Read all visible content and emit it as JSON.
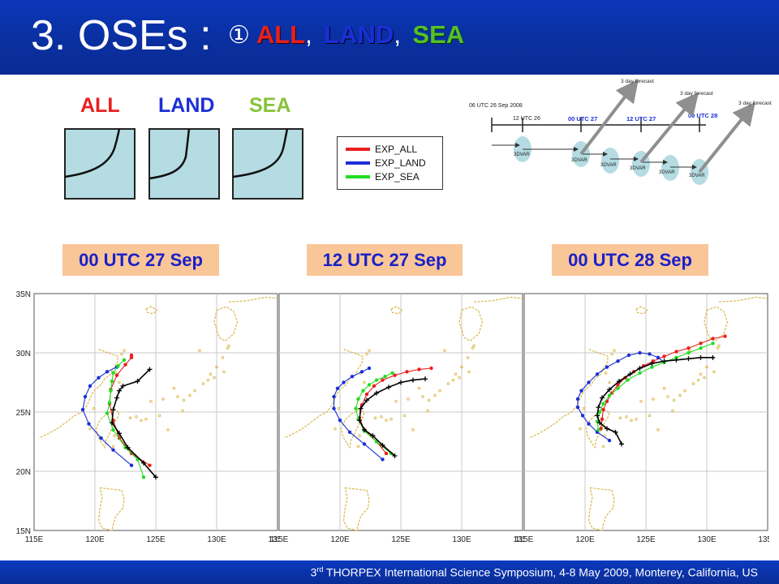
{
  "slide": {
    "title_main": "3. OSEs : ",
    "title_circle": "①",
    "title_all": "ALL",
    "title_comma": ",",
    "title_land": "LAND",
    "title_sea": "SEA",
    "footer_sup": "rd",
    "footer_pre": "3",
    "footer_text": " THORPEX International Science Symposium, 4-8 May 2009, Monterey, California, US"
  },
  "experiments": {
    "labels": [
      {
        "text": "ALL",
        "color": "#e8201f"
      },
      {
        "text": "LAND",
        "color": "#1b2fd6"
      },
      {
        "text": "SEA",
        "color": "#88c33b"
      }
    ],
    "box_color": "#b4dce2"
  },
  "legend": {
    "items": [
      {
        "label": "EXP_ALL",
        "color": "#e8201f"
      },
      {
        "label": "EXP_LAND",
        "color": "#1b2fd6"
      },
      {
        "label": "EXP_SEA",
        "color": "#22dd22"
      }
    ]
  },
  "timeline": {
    "start_label": "06 UTC 26 Sep 2008",
    "ticks": [
      {
        "label": "12 UTC 26",
        "blue": false
      },
      {
        "label": "00 UTC 27",
        "blue": true
      },
      {
        "label": "12 UTC 27",
        "blue": true
      },
      {
        "label": "00 UTC 28",
        "blue": true
      }
    ],
    "cycle_label": "3DVAR",
    "forecast_label": "3 day forecast"
  },
  "panels": {
    "labels": [
      "00 UTC 27 Sep",
      "12 UTC 27 Sep",
      "00 UTC 28 Sep"
    ]
  },
  "map_axes": {
    "lat_ticks": [
      "35N",
      "30N",
      "25N",
      "20N",
      "15N"
    ],
    "lon_ticks": [
      "115E",
      "120E",
      "125E",
      "130E",
      "135E"
    ]
  },
  "chart_data": [
    {
      "type": "line",
      "title": "00 UTC 27 Sep",
      "xlabel": "",
      "ylabel": "",
      "xlim": [
        115,
        135
      ],
      "ylim": [
        15,
        35
      ],
      "series": [
        {
          "name": "EXP_ALL",
          "color": "#e8201f",
          "x": [
            124.5,
            123.0,
            122.0,
            121.5,
            121.2,
            121.3,
            121.8,
            122.5,
            123.0,
            123.0
          ],
          "y": [
            20.5,
            21.5,
            22.8,
            24.3,
            25.7,
            26.9,
            28.1,
            29.0,
            29.6,
            29.8
          ]
        },
        {
          "name": "EXP_LAND",
          "color": "#1b2fd6",
          "x": [
            123.0,
            121.5,
            120.5,
            119.5,
            119.0,
            119.2,
            119.6,
            120.3,
            121.0,
            121.8
          ],
          "y": [
            20.5,
            21.8,
            22.8,
            24.0,
            25.2,
            26.3,
            27.2,
            27.9,
            28.4,
            28.8
          ]
        },
        {
          "name": "EXP_SEA",
          "color": "#22dd22",
          "x": [
            124.0,
            123.5,
            122.5,
            121.5,
            121.0,
            121.2,
            121.3,
            121.4,
            121.5,
            121.9,
            122.4
          ],
          "y": [
            19.5,
            21.0,
            22.0,
            23.5,
            24.9,
            25.8,
            26.8,
            27.6,
            28.3,
            28.9,
            29.4
          ]
        },
        {
          "name": "",
          "color": "#000000",
          "x": [
            125.0,
            124.0,
            122.7,
            122.0,
            121.4,
            121.5,
            121.8,
            122.0,
            122.3,
            123.5,
            124.5
          ],
          "y": [
            19.5,
            20.7,
            22.0,
            23.2,
            24.1,
            25.2,
            26.2,
            26.8,
            27.2,
            27.6,
            28.6
          ]
        }
      ]
    },
    {
      "type": "line",
      "title": "12 UTC 27 Sep",
      "xlabel": "",
      "ylabel": "",
      "xlim": [
        115,
        135
      ],
      "ylim": [
        15,
        35
      ],
      "series": [
        {
          "name": "EXP_ALL",
          "color": "#e8201f",
          "x": [
            123.8,
            123.0,
            122.0,
            121.6,
            121.8,
            122.2,
            122.8,
            123.5,
            124.5,
            125.5,
            126.5,
            127.5
          ],
          "y": [
            21.5,
            22.5,
            23.5,
            24.5,
            25.6,
            26.5,
            27.2,
            27.7,
            28.1,
            28.4,
            28.6,
            28.7
          ]
        },
        {
          "name": "EXP_LAND",
          "color": "#1b2fd6",
          "x": [
            123.5,
            122.0,
            120.8,
            120.0,
            119.5,
            119.5,
            119.8,
            120.3,
            121.0,
            121.8,
            122.4
          ],
          "y": [
            21.0,
            22.3,
            23.3,
            24.3,
            25.3,
            26.3,
            27.0,
            27.5,
            28.0,
            28.4,
            28.7
          ]
        },
        {
          "name": "EXP_SEA",
          "color": "#22dd22",
          "x": [
            124.2,
            123.0,
            122.0,
            121.5,
            121.3,
            121.5,
            121.9,
            122.4,
            123.0,
            123.7,
            124.3
          ],
          "y": [
            21.5,
            22.5,
            23.4,
            24.4,
            25.3,
            26.1,
            26.8,
            27.3,
            27.7,
            28.0,
            28.3
          ]
        },
        {
          "name": "",
          "color": "#000000",
          "x": [
            124.5,
            123.5,
            122.7,
            122.0,
            121.6,
            121.7,
            122.2,
            123.0,
            124.0,
            125.0,
            126.0,
            127.0
          ],
          "y": [
            21.3,
            22.2,
            23.0,
            23.5,
            24.3,
            25.3,
            26.0,
            26.6,
            27.1,
            27.5,
            27.7,
            27.8
          ]
        }
      ]
    },
    {
      "type": "line",
      "title": "00 UTC 28 Sep",
      "xlabel": "",
      "ylabel": "",
      "xlim": [
        115,
        135
      ],
      "ylim": [
        15,
        35
      ],
      "series": [
        {
          "name": "EXP_ALL",
          "color": "#e8201f",
          "x": [
            121.3,
            121.4,
            121.5,
            121.8,
            122.2,
            122.7,
            123.3,
            124.0,
            124.8,
            125.6,
            126.5,
            127.5,
            128.5,
            129.5,
            130.5,
            131.5
          ],
          "y": [
            23.6,
            24.4,
            25.2,
            25.9,
            26.6,
            27.3,
            27.9,
            28.4,
            28.9,
            29.3,
            29.7,
            30.1,
            30.4,
            30.8,
            31.2,
            31.4
          ]
        },
        {
          "name": "EXP_LAND",
          "color": "#1b2fd6",
          "x": [
            122.0,
            121.0,
            120.3,
            119.8,
            119.4,
            119.4,
            119.7,
            120.3,
            121.0,
            121.8,
            122.7,
            123.6,
            124.5,
            125.3,
            126.0,
            126.5
          ],
          "y": [
            22.6,
            23.3,
            24.0,
            24.7,
            25.4,
            26.1,
            26.8,
            27.5,
            28.2,
            28.8,
            29.3,
            29.8,
            30.0,
            29.9,
            29.6,
            29.2
          ]
        },
        {
          "name": "EXP_SEA",
          "color": "#22dd22",
          "x": [
            121.1,
            121.0,
            121.2,
            121.5,
            122.0,
            122.7,
            123.5,
            124.5,
            125.5,
            126.5,
            127.5,
            128.5,
            129.5,
            130.5
          ],
          "y": [
            23.5,
            24.2,
            25.0,
            25.7,
            26.4,
            27.0,
            27.7,
            28.3,
            28.8,
            29.2,
            29.6,
            30.0,
            30.4,
            30.8
          ]
        },
        {
          "name": "",
          "color": "#000000",
          "x": [
            123.0,
            122.5,
            121.8,
            121.2,
            121.0,
            121.1,
            121.4,
            122.0,
            122.8,
            123.7,
            124.5,
            125.5,
            126.5,
            127.5,
            128.5,
            129.5,
            130.5
          ],
          "y": [
            22.3,
            23.3,
            23.6,
            24.1,
            24.7,
            25.4,
            26.2,
            26.9,
            27.6,
            28.2,
            28.7,
            29.1,
            29.3,
            29.4,
            29.5,
            29.6,
            29.6
          ]
        }
      ]
    }
  ]
}
